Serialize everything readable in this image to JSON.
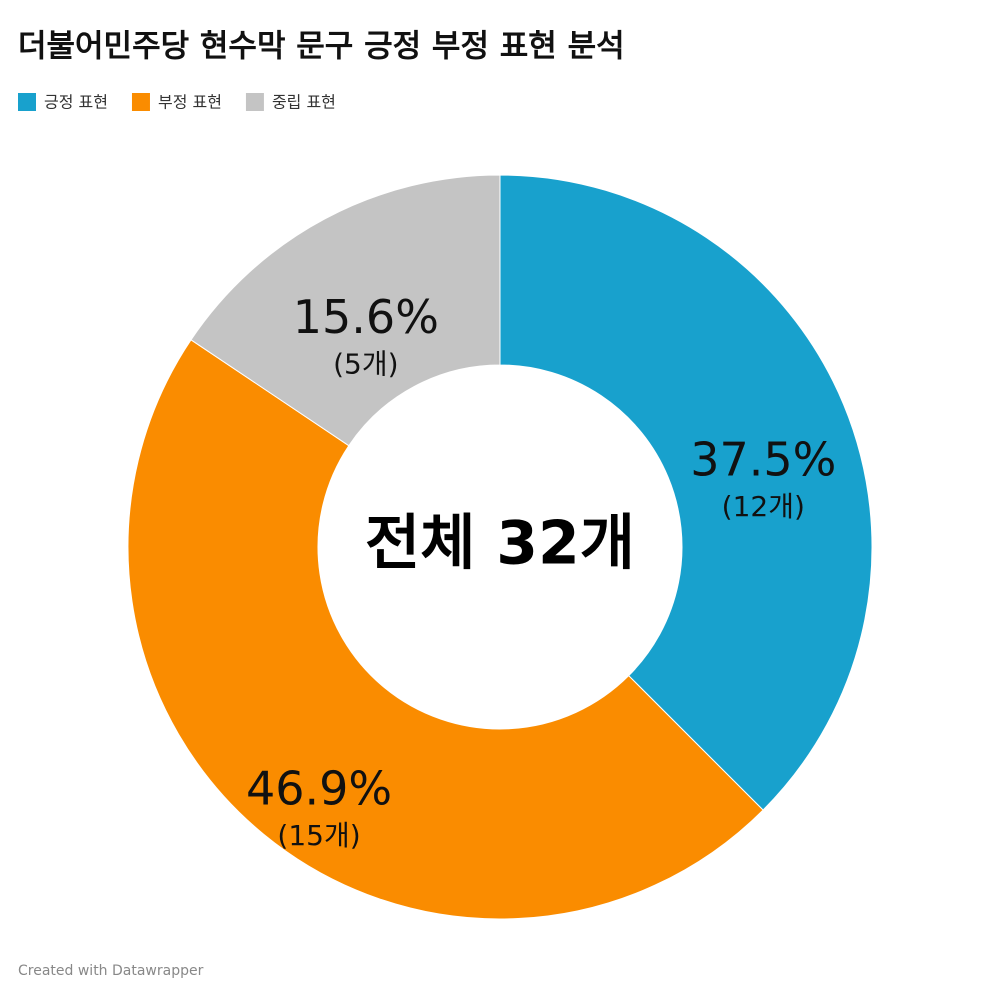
{
  "chart_data": {
    "type": "donut",
    "title": "더불어민주당 현수막 문구 긍정 부정 표현 분석",
    "categories": [
      "긍정 표현",
      "부정 표현",
      "중립 표현"
    ],
    "values": [
      37.5,
      46.9,
      15.6
    ],
    "value_labels": [
      "37.5%",
      "46.9%",
      "15.6%"
    ],
    "count_labels": [
      "(12개)",
      "(15개)",
      "(5개)"
    ],
    "colors": [
      "#18a1cd",
      "#fa8c00",
      "#c4c4c4"
    ],
    "center_label": "전체 32개",
    "footer": "Created with Datawrapper"
  }
}
